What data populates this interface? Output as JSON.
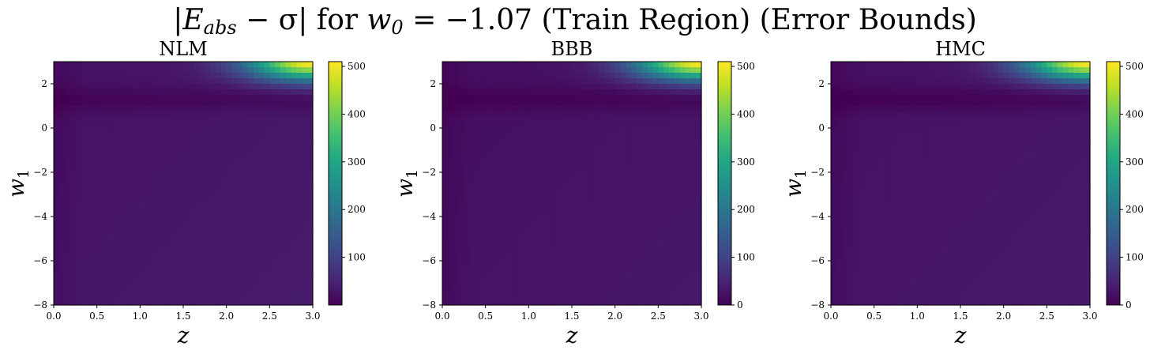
{
  "figure": {
    "title_parts": {
      "bar_open": "|",
      "E": "E",
      "sub_abs": "abs",
      "minus_sigma": " − σ",
      "bar_close": "|",
      "for_text": " for ",
      "w": "w",
      "sub_0": "0",
      "rest": " = −1.07 (Train Region) (Error Bounds)"
    }
  },
  "chart_data": [
    {
      "type": "heatmap",
      "title": "NLM",
      "xlabel": "z",
      "ylabel": "w1",
      "xlim": [
        0.0,
        3.0
      ],
      "ylim": [
        -8,
        3
      ],
      "x_ticks": [
        "0.0",
        "0.5",
        "1.0",
        "1.5",
        "2.0",
        "2.5",
        "3.0"
      ],
      "y_ticks": [
        "−8",
        "−6",
        "−4",
        "−2",
        "0",
        "2"
      ],
      "colorbar": {
        "colormap": "viridis",
        "min": 0,
        "max": 510,
        "ticks": [
          "100",
          "200",
          "300",
          "400",
          "500"
        ]
      },
      "description_values": {
        "background_level": 30,
        "low_band_w1": 1.3,
        "low_band_level": 10,
        "peak_at": [
          3.0,
          3.0
        ],
        "peak_value": 510
      },
      "colors": {
        "low": "#440154",
        "mid": "#21918c",
        "high": "#fde725"
      }
    },
    {
      "type": "heatmap",
      "title": "BBB",
      "xlabel": "z",
      "ylabel": "w1",
      "xlim": [
        0.0,
        3.0
      ],
      "ylim": [
        -8,
        3
      ],
      "x_ticks": [
        "0.0",
        "0.5",
        "1.0",
        "1.5",
        "2.0",
        "2.5",
        "3.0"
      ],
      "y_ticks": [
        "−8",
        "−6",
        "−4",
        "−2",
        "0",
        "2"
      ],
      "colorbar": {
        "colormap": "viridis",
        "min": 0,
        "max": 510,
        "ticks": [
          "0",
          "100",
          "200",
          "300",
          "400",
          "500"
        ]
      },
      "description_values": {
        "background_level": 25,
        "low_band_w1": 1.3,
        "low_band_level": 5,
        "peak_at": [
          3.0,
          3.0
        ],
        "peak_value": 510
      },
      "colors": {
        "low": "#440154",
        "mid": "#21918c",
        "high": "#fde725"
      }
    },
    {
      "type": "heatmap",
      "title": "HMC",
      "xlabel": "z",
      "ylabel": "w1",
      "xlim": [
        0.0,
        3.0
      ],
      "ylim": [
        -8,
        3
      ],
      "x_ticks": [
        "0.0",
        "0.5",
        "1.0",
        "1.5",
        "2.0",
        "2.5",
        "3.0"
      ],
      "y_ticks": [
        "−8",
        "−6",
        "−4",
        "−2",
        "0",
        "2"
      ],
      "colorbar": {
        "colormap": "viridis",
        "min": 0,
        "max": 510,
        "ticks": [
          "0",
          "100",
          "200",
          "300",
          "400",
          "500"
        ]
      },
      "description_values": {
        "background_level": 28,
        "low_band_w1": 1.3,
        "low_band_level": 5,
        "peak_at": [
          3.0,
          3.0
        ],
        "peak_value": 510
      },
      "colors": {
        "low": "#440154",
        "mid": "#21918c",
        "high": "#fde725"
      }
    }
  ]
}
